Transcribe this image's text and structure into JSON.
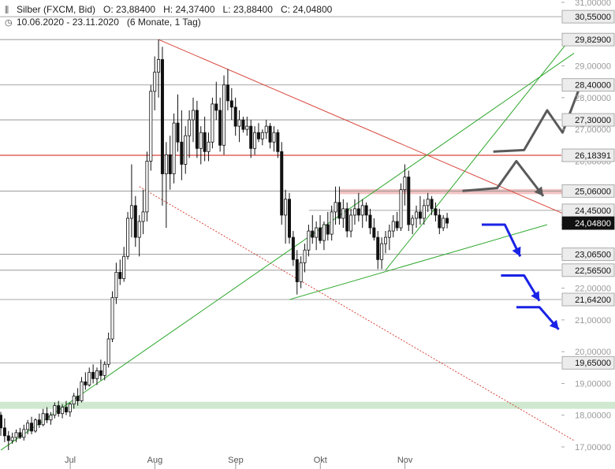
{
  "header": {
    "chart_icon": "bar-chart-icon",
    "title": "Silber (FXCM, Bid)",
    "open": "O: 23,88400",
    "high": "H: 24,37400",
    "low": "L: 23,88400",
    "close": "C: 24,04800",
    "clock_icon": "clock-icon",
    "range": "10.06.2020 - 23.11.2020",
    "period": "(6 Monate, 1 Tag)"
  },
  "colors": {
    "resistance_red": "#d9463b",
    "trend_green": "#2ea82e",
    "arrow_gray": "#5a5a5a",
    "arrow_blue": "#1a22e6",
    "candle": "#111111",
    "zone_green": "#cfe8cf",
    "zone_red": "#f2c4c4",
    "current_label_bg": "#111111"
  },
  "chart_data": {
    "type": "candlestick",
    "title": "Silber (FXCM, Bid)",
    "ylim": [
      16.8,
      31.1
    ],
    "axis_ticks": [
      {
        "value": 31.0,
        "label": "31,00000"
      },
      {
        "value": 29.0,
        "label": "29,00000"
      },
      {
        "value": 28.0,
        "label": "28,00000"
      },
      {
        "value": 27.0,
        "label": "27,00000"
      },
      {
        "value": 26.0,
        "label": "26,00000"
      },
      {
        "value": 25.0,
        "label": "25,00000"
      },
      {
        "value": 24.0,
        "label": "24,00000"
      },
      {
        "value": 23.0,
        "label": "23,00000"
      },
      {
        "value": 22.0,
        "label": "22,00000"
      },
      {
        "value": 21.0,
        "label": "21,00000"
      },
      {
        "value": 20.0,
        "label": "20,00000"
      },
      {
        "value": 19.0,
        "label": "19,00000"
      },
      {
        "value": 18.0,
        "label": "18,00000"
      },
      {
        "value": 17.0,
        "label": "17,00000"
      }
    ],
    "months": [
      {
        "label": "Jul",
        "index": 16
      },
      {
        "label": "Aug",
        "index": 38
      },
      {
        "label": "Sep",
        "index": 59
      },
      {
        "label": "Okt",
        "index": 81
      },
      {
        "label": "Nov",
        "index": 103
      }
    ],
    "levels": [
      {
        "value": 30.55,
        "label": "30,55000",
        "style": "gray"
      },
      {
        "value": 29.829,
        "label": "29,82900",
        "style": "gray"
      },
      {
        "value": 28.4,
        "label": "28,40000",
        "style": "gray"
      },
      {
        "value": 27.3,
        "label": "27,30000",
        "style": "gray"
      },
      {
        "value": 26.18391,
        "label": "26,18391",
        "style": "red"
      },
      {
        "value": 25.06,
        "label": "25,06000",
        "style": "gray"
      },
      {
        "value": 24.45,
        "label": "24,45000",
        "style": "gray"
      },
      {
        "value": 24.048,
        "label": "24,04800",
        "style": "current"
      },
      {
        "value": 23.065,
        "label": "23,06500",
        "style": "gray"
      },
      {
        "value": 22.565,
        "label": "22,56500",
        "style": "gray"
      },
      {
        "value": 21.642,
        "label": "21,64200",
        "style": "gray"
      },
      {
        "value": 19.65,
        "label": "19,65000",
        "style": "gray"
      }
    ],
    "zones": [
      {
        "from": 18.2,
        "to": 18.42,
        "color": "green"
      },
      {
        "from": 24.96,
        "to": 25.12,
        "color": "red"
      }
    ],
    "trendlines": [
      {
        "color": "red",
        "style": "solid",
        "from": [
          41,
          29.829
        ],
        "to": [
          149,
          24.2
        ]
      },
      {
        "color": "red",
        "style": "dotted",
        "from": [
          36,
          25.2
        ],
        "to": [
          149,
          17.2
        ]
      },
      {
        "color": "green",
        "style": "solid",
        "from": [
          0,
          16.9
        ],
        "to": [
          149,
          29.4
        ]
      },
      {
        "color": "green",
        "style": "solid",
        "from": [
          75,
          21.64
        ],
        "to": [
          142,
          24.0
        ]
      },
      {
        "color": "green",
        "style": "solid",
        "from": [
          100,
          22.565
        ],
        "to": [
          149,
          30.0
        ]
      }
    ],
    "candles": [
      [
        18.0,
        18.1,
        17.35,
        17.6
      ],
      [
        17.6,
        17.9,
        17.15,
        17.35
      ],
      [
        17.35,
        17.5,
        16.9,
        17.2
      ],
      [
        17.2,
        17.45,
        17.1,
        17.3
      ],
      [
        17.3,
        17.55,
        17.15,
        17.45
      ],
      [
        17.45,
        17.6,
        17.25,
        17.3
      ],
      [
        17.3,
        17.7,
        17.2,
        17.55
      ],
      [
        17.55,
        17.85,
        17.4,
        17.75
      ],
      [
        17.75,
        17.95,
        17.4,
        17.5
      ],
      [
        17.5,
        17.9,
        17.45,
        17.85
      ],
      [
        17.85,
        18.05,
        17.6,
        17.7
      ],
      [
        17.7,
        18.2,
        17.65,
        18.05
      ],
      [
        18.05,
        18.25,
        17.75,
        17.85
      ],
      [
        17.85,
        18.1,
        17.7,
        18.0
      ],
      [
        18.0,
        18.4,
        17.9,
        18.3
      ],
      [
        18.3,
        18.45,
        17.95,
        18.05
      ],
      [
        18.05,
        18.35,
        17.9,
        18.25
      ],
      [
        18.25,
        18.45,
        18.0,
        18.1
      ],
      [
        18.1,
        18.4,
        17.95,
        18.35
      ],
      [
        18.35,
        18.7,
        18.2,
        18.6
      ],
      [
        18.6,
        18.85,
        18.3,
        18.45
      ],
      [
        18.45,
        19.2,
        18.4,
        19.05
      ],
      [
        19.05,
        19.35,
        18.8,
        18.95
      ],
      [
        18.95,
        19.5,
        18.9,
        19.35
      ],
      [
        19.35,
        19.6,
        19.0,
        19.15
      ],
      [
        19.15,
        19.5,
        18.95,
        19.4
      ],
      [
        19.4,
        19.75,
        19.1,
        19.25
      ],
      [
        19.25,
        19.7,
        19.1,
        19.6
      ],
      [
        19.6,
        20.6,
        19.5,
        20.4
      ],
      [
        20.4,
        21.9,
        20.3,
        21.7
      ],
      [
        21.7,
        22.8,
        21.5,
        22.5
      ],
      [
        22.5,
        22.9,
        22.1,
        22.3
      ],
      [
        22.3,
        23.3,
        22.2,
        23.0
      ],
      [
        23.0,
        24.4,
        22.9,
        24.2
      ],
      [
        24.2,
        25.9,
        23.6,
        24.6
      ],
      [
        24.6,
        24.9,
        23.3,
        23.6
      ],
      [
        23.6,
        24.3,
        23.0,
        24.1
      ],
      [
        24.1,
        25.1,
        23.7,
        24.4
      ],
      [
        24.4,
        26.3,
        24.1,
        26.0
      ],
      [
        26.0,
        28.4,
        25.7,
        28.2
      ],
      [
        28.2,
        29.3,
        27.6,
        28.8
      ],
      [
        28.8,
        29.83,
        28.0,
        29.2
      ],
      [
        29.2,
        29.6,
        24.6,
        25.6
      ],
      [
        25.6,
        26.6,
        23.9,
        26.2
      ],
      [
        26.2,
        26.8,
        25.1,
        25.6
      ],
      [
        25.6,
        27.5,
        25.3,
        27.2
      ],
      [
        27.2,
        28.1,
        26.3,
        26.6
      ],
      [
        26.6,
        27.6,
        25.4,
        25.9
      ],
      [
        25.9,
        27.1,
        25.6,
        26.8
      ],
      [
        26.8,
        27.6,
        26.1,
        27.3
      ],
      [
        27.3,
        28.0,
        26.6,
        27.6
      ],
      [
        27.6,
        27.9,
        26.1,
        26.4
      ],
      [
        26.4,
        27.1,
        25.9,
        26.9
      ],
      [
        26.9,
        27.4,
        26.0,
        26.3
      ],
      [
        26.3,
        26.9,
        26.0,
        26.6
      ],
      [
        26.6,
        28.0,
        26.4,
        27.8
      ],
      [
        27.8,
        28.5,
        27.3,
        27.6
      ],
      [
        27.6,
        28.0,
        26.3,
        26.5
      ],
      [
        26.5,
        28.7,
        26.2,
        28.4
      ],
      [
        28.4,
        28.9,
        27.6,
        27.9
      ],
      [
        27.9,
        28.3,
        27.3,
        27.7
      ],
      [
        27.7,
        28.0,
        26.8,
        27.1
      ],
      [
        27.1,
        27.6,
        26.6,
        27.3
      ],
      [
        27.3,
        27.4,
        26.9,
        27.0
      ],
      [
        27.0,
        27.4,
        26.8,
        27.1
      ],
      [
        27.1,
        27.3,
        26.1,
        26.4
      ],
      [
        26.4,
        27.1,
        26.2,
        26.9
      ],
      [
        26.9,
        27.2,
        26.6,
        26.7
      ],
      [
        26.7,
        27.0,
        26.5,
        26.9
      ],
      [
        26.9,
        27.3,
        26.7,
        27.1
      ],
      [
        27.1,
        27.2,
        26.4,
        26.6
      ],
      [
        26.6,
        27.1,
        26.3,
        26.9
      ],
      [
        26.9,
        27.0,
        26.1,
        26.3
      ],
      [
        26.3,
        26.6,
        24.0,
        24.3
      ],
      [
        24.3,
        25.1,
        23.4,
        24.8
      ],
      [
        24.8,
        25.0,
        23.4,
        23.6
      ],
      [
        23.6,
        23.8,
        22.7,
        22.9
      ],
      [
        22.9,
        23.2,
        21.8,
        22.2
      ],
      [
        22.2,
        23.0,
        22.0,
        22.8
      ],
      [
        22.8,
        23.4,
        22.5,
        23.2
      ],
      [
        23.2,
        24.0,
        23.0,
        23.8
      ],
      [
        23.8,
        24.3,
        23.4,
        23.6
      ],
      [
        23.6,
        24.1,
        23.2,
        23.9
      ],
      [
        23.9,
        24.3,
        23.4,
        23.5
      ],
      [
        23.5,
        24.1,
        23.2,
        24.0
      ],
      [
        24.0,
        24.4,
        23.5,
        23.7
      ],
      [
        23.7,
        24.6,
        23.5,
        24.4
      ],
      [
        24.4,
        25.2,
        24.0,
        24.7
      ],
      [
        24.7,
        25.2,
        24.0,
        24.2
      ],
      [
        24.2,
        24.8,
        23.9,
        24.5
      ],
      [
        24.5,
        24.7,
        23.6,
        23.8
      ],
      [
        23.8,
        24.5,
        23.6,
        24.3
      ],
      [
        24.3,
        24.8,
        24.0,
        24.5
      ],
      [
        24.5,
        25.0,
        24.1,
        24.3
      ],
      [
        24.3,
        24.8,
        23.9,
        24.6
      ],
      [
        24.6,
        24.7,
        24.1,
        24.3
      ],
      [
        24.3,
        24.5,
        23.7,
        23.9
      ],
      [
        23.9,
        24.2,
        23.5,
        23.6
      ],
      [
        23.6,
        23.8,
        22.6,
        22.9
      ],
      [
        22.9,
        23.6,
        22.6,
        23.4
      ],
      [
        23.4,
        23.8,
        23.1,
        23.6
      ],
      [
        23.6,
        24.0,
        23.2,
        23.8
      ],
      [
        23.8,
        24.3,
        23.6,
        24.1
      ],
      [
        24.1,
        24.4,
        23.8,
        23.9
      ],
      [
        23.9,
        25.3,
        23.8,
        25.1
      ],
      [
        25.1,
        25.9,
        24.6,
        25.5
      ],
      [
        25.5,
        25.7,
        23.8,
        24.0
      ],
      [
        24.0,
        24.3,
        23.7,
        24.2
      ],
      [
        24.2,
        24.6,
        23.9,
        24.4
      ],
      [
        24.4,
        24.9,
        24.0,
        24.2
      ],
      [
        24.2,
        24.8,
        24.0,
        24.6
      ],
      [
        24.6,
        25.0,
        24.4,
        24.8
      ],
      [
        24.8,
        24.9,
        24.3,
        24.5
      ],
      [
        24.5,
        24.7,
        24.1,
        24.3
      ],
      [
        24.3,
        24.5,
        23.7,
        23.9
      ],
      [
        23.9,
        24.3,
        23.8,
        24.2
      ],
      [
        24.2,
        24.37,
        23.884,
        24.048
      ]
    ],
    "scenarios": [
      {
        "color": "gray",
        "points": [
          [
            120,
            25.06
          ],
          [
            129,
            25.15
          ],
          [
            134,
            26.0
          ],
          [
            141,
            24.9
          ]
        ]
      },
      {
        "color": "gray",
        "points": [
          [
            128,
            26.3
          ],
          [
            136,
            26.35
          ],
          [
            142,
            27.6
          ],
          [
            146,
            26.9
          ],
          [
            151,
            28.5
          ]
        ]
      },
      {
        "color": "blue",
        "points": [
          [
            125,
            24.0
          ],
          [
            131,
            24.0
          ],
          [
            135,
            23.0
          ]
        ]
      },
      {
        "color": "blue",
        "points": [
          [
            130,
            22.4
          ],
          [
            136,
            22.4
          ],
          [
            140,
            21.6
          ]
        ]
      },
      {
        "color": "blue",
        "points": [
          [
            134,
            21.4
          ],
          [
            140,
            21.4
          ],
          [
            145,
            20.7
          ]
        ]
      }
    ]
  }
}
